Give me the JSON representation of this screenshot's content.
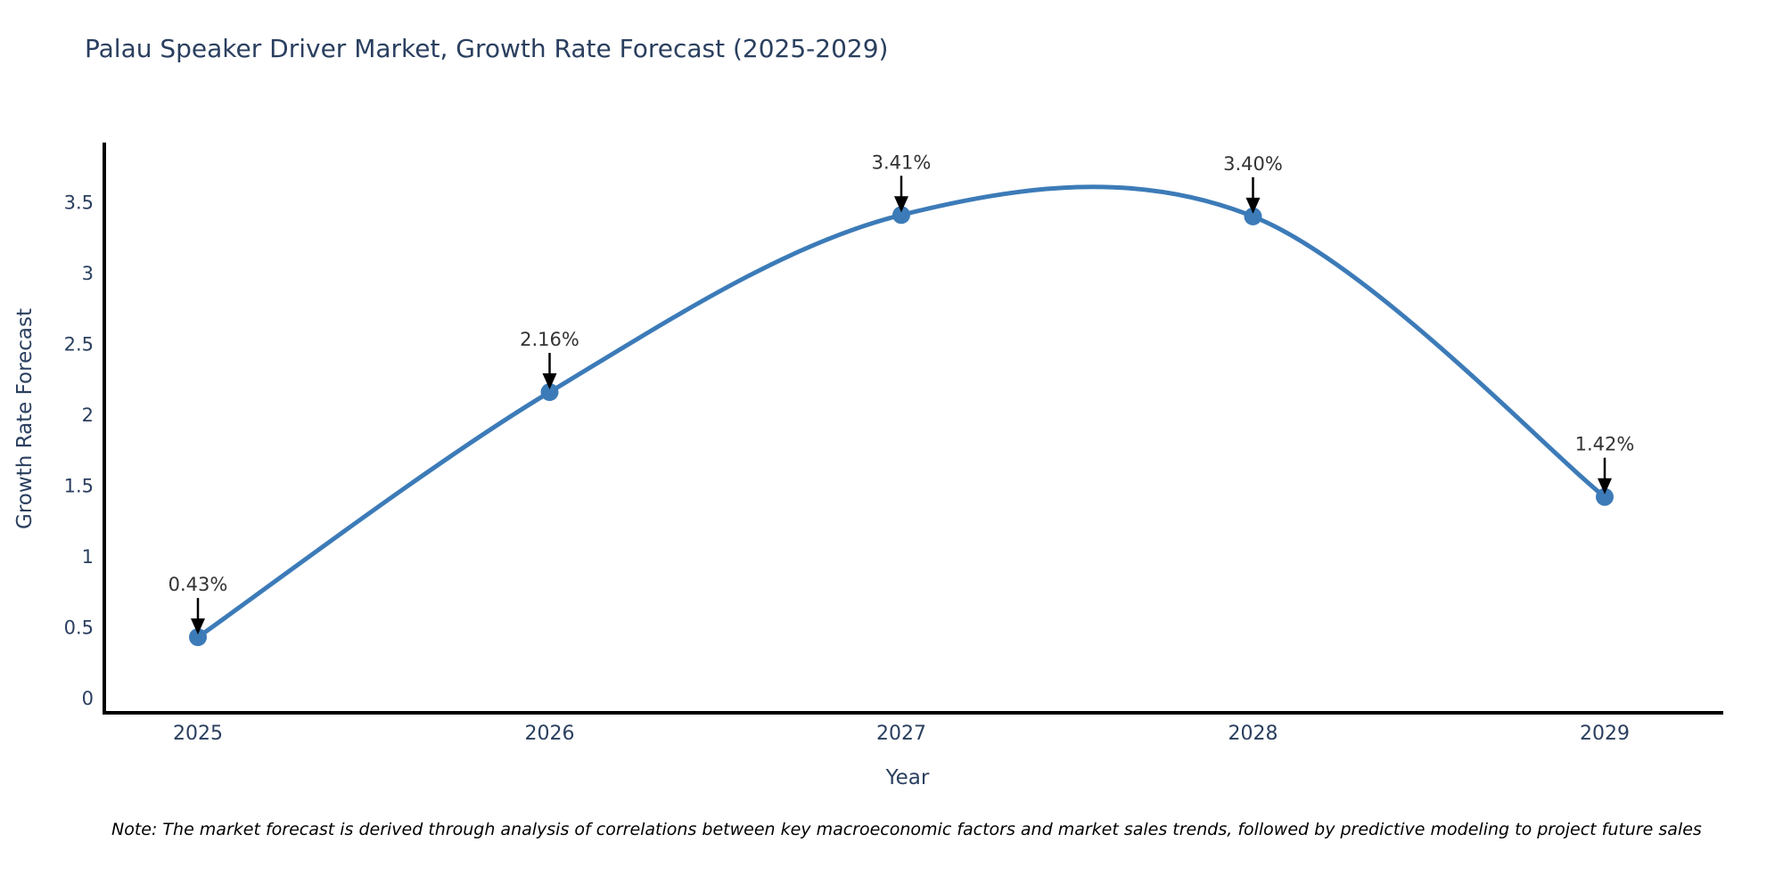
{
  "page": {
    "note": "Note: The market forecast is derived through analysis of correlations between key macroeconomic factors and market sales trends, followed by predictive modeling to project future sales"
  },
  "chart_data": {
    "type": "line",
    "line_shape": "spline",
    "title": "Palau Speaker Driver Market, Growth Rate Forecast (2025-2029)",
    "xlabel": "Year",
    "ylabel": "Growth Rate Forecast",
    "categories": [
      "2025",
      "2026",
      "2027",
      "2028",
      "2029"
    ],
    "values": [
      0.43,
      2.16,
      3.41,
      3.4,
      1.42
    ],
    "point_labels": [
      "0.43%",
      "2.16%",
      "3.41%",
      "3.40%",
      "1.42%"
    ],
    "ytick_labels": [
      "0",
      "0.5",
      "1",
      "1.5",
      "2",
      "2.5",
      "3",
      "3.5"
    ],
    "yticks": [
      0,
      0.5,
      1,
      1.5,
      2,
      2.5,
      3,
      3.5
    ],
    "ylim": [
      0,
      3.5
    ],
    "grid": false,
    "legend": "none",
    "annotations_have_arrows": true,
    "colors": {
      "line": "#3c7bb8",
      "marker": "#3c7bb8",
      "axis_line": "#000000",
      "title_text": "#2a3f5f",
      "tick_text": "#2a3f5f",
      "annotation_text": "#333333",
      "arrow": "#000000",
      "note_text": "#000000",
      "background": "#ffffff"
    }
  }
}
